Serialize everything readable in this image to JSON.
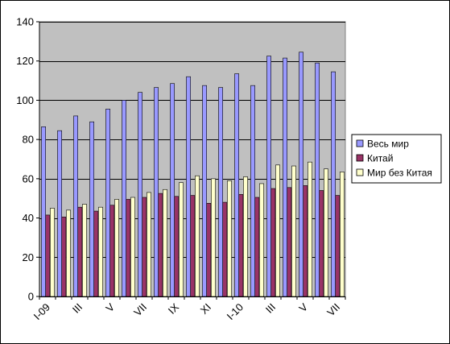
{
  "chart_data": {
    "type": "bar",
    "title": "",
    "xlabel": "",
    "ylabel": "",
    "ylim": [
      0,
      140
    ],
    "yticks": [
      0,
      20,
      40,
      60,
      80,
      100,
      120,
      140
    ],
    "grid": true,
    "legend_position": "right",
    "categories": [
      "I-09",
      "II",
      "III",
      "IV",
      "V",
      "VI",
      "VII",
      "VIII",
      "IX",
      "X",
      "XI",
      "XII",
      "I-10",
      "II",
      "III",
      "IV",
      "V",
      "VI",
      "VII"
    ],
    "category_labels_shown": [
      "I-09",
      "",
      "III",
      "",
      "V",
      "",
      "VII",
      "",
      "IX",
      "",
      "XI",
      "",
      "I-10",
      "",
      "III",
      "",
      "V",
      "",
      "VII"
    ],
    "series": [
      {
        "name": "Весь мир",
        "color": "#9999ff",
        "values": [
          86.5,
          84.5,
          92,
          89,
          95.5,
          100,
          104,
          106.5,
          108.5,
          112,
          107.5,
          106.5,
          113.5,
          107.5,
          122.5,
          121.5,
          124.5,
          119,
          114.5
        ]
      },
      {
        "name": "Китай",
        "color": "#993366",
        "values": [
          41.5,
          40.5,
          45.5,
          43.5,
          46.5,
          49.5,
          50.5,
          52.5,
          51,
          51.5,
          47.5,
          48,
          52,
          50.5,
          55,
          55.5,
          56.5,
          54,
          51.5
        ]
      },
      {
        "name": "Мир без Китая",
        "color": "#ffffcc",
        "values": [
          45,
          44,
          47,
          45.5,
          49.5,
          50.5,
          53,
          54.5,
          58,
          61.5,
          60,
          59,
          61,
          57.5,
          67,
          66.5,
          68.5,
          65,
          63.5
        ]
      }
    ]
  }
}
